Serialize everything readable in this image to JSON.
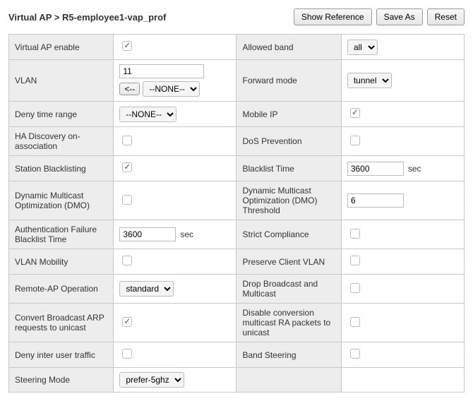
{
  "header": {
    "breadcrumb": "Virtual AP > R5-employee1-vap_prof",
    "buttons": {
      "show_ref": "Show Reference",
      "save_as": "Save As",
      "reset": "Reset"
    }
  },
  "rows": [
    {
      "l1": "Virtual AP enable",
      "t1": "check",
      "v1": true,
      "l2": "Allowed band",
      "t2": "select",
      "v2": "all"
    },
    {
      "l1": "VLAN",
      "t1": "vlan",
      "v1": {
        "value": "11",
        "arrow": "<--",
        "none": "--NONE--"
      },
      "l2": "Forward mode",
      "t2": "select",
      "v2": "tunnel"
    },
    {
      "l1": "Deny time range",
      "t1": "select",
      "v1": "--NONE--",
      "l2": "Mobile IP",
      "t2": "check",
      "v2": true
    },
    {
      "l1": "HA Discovery on-association",
      "t1": "check",
      "v1": false,
      "l2": "DoS Prevention",
      "t2": "check",
      "v2": false
    },
    {
      "l1": "Station Blacklisting",
      "t1": "check",
      "v1": true,
      "l2": "Blacklist Time",
      "t2": "text",
      "v2": "3600",
      "u2": "sec"
    },
    {
      "l1": "Dynamic Multicast Optimization (DMO)",
      "t1": "check",
      "v1": false,
      "l2": "Dynamic Multicast Optimization (DMO) Threshold",
      "t2": "text",
      "v2": "6"
    },
    {
      "l1": "Authentication Failure Blacklist Time",
      "t1": "text",
      "v1": "3600",
      "u1": "sec",
      "l2": "Strict Compliance",
      "t2": "check",
      "v2": false
    },
    {
      "l1": "VLAN Mobility",
      "t1": "check",
      "v1": false,
      "l2": "Preserve Client VLAN",
      "t2": "check",
      "v2": false
    },
    {
      "l1": "Remote-AP Operation",
      "t1": "select",
      "v1": "standard",
      "l2": "Drop Broadcast and Multicast",
      "t2": "check",
      "v2": false
    },
    {
      "l1": "Convert Broadcast ARP requests to unicast",
      "t1": "check",
      "v1": true,
      "l2": "Disable conversion multicast RA packets to unicast",
      "t2": "check",
      "v2": false
    },
    {
      "l1": "Deny inter user traffic",
      "t1": "check",
      "v1": false,
      "l2": "Band Steering",
      "t2": "check",
      "v2": false
    },
    {
      "l1": "Steering Mode",
      "t1": "select",
      "v1": "prefer-5ghz",
      "l2": null
    }
  ]
}
